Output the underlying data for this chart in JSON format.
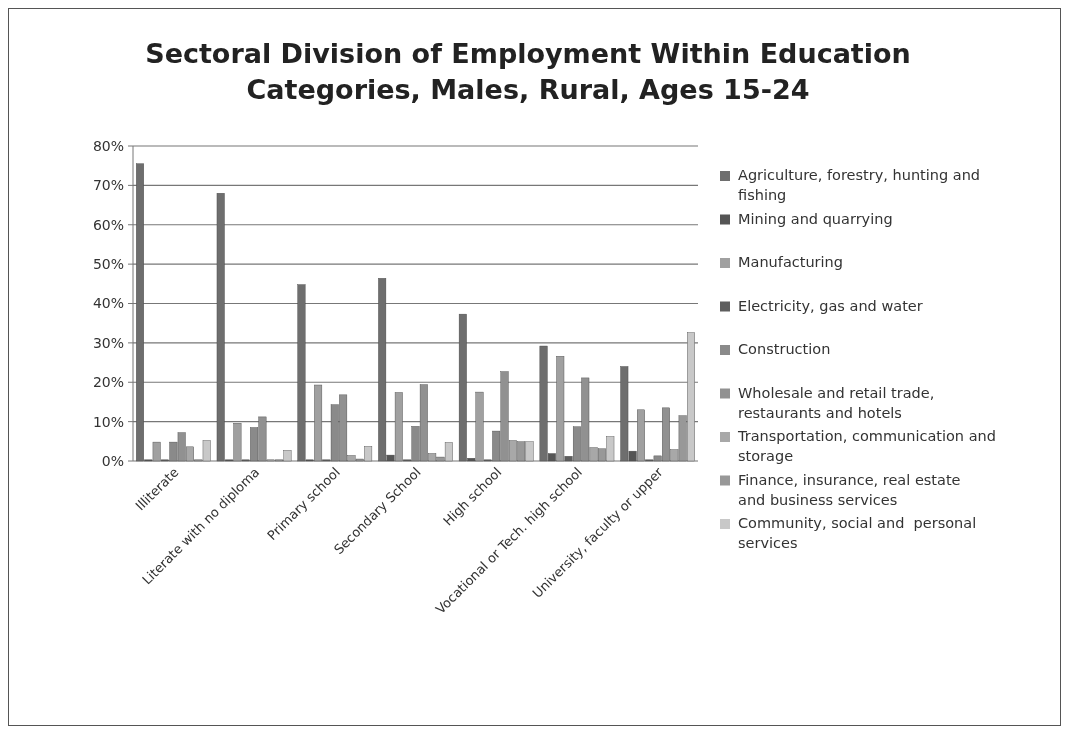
{
  "chart_data": {
    "type": "bar",
    "title": "Sectoral Division of Employment Within Education Categories, Males, Rural, Ages 15-24",
    "categories": [
      "Illiterate",
      "Literate with no diploma",
      "Primary school",
      "Secondary School",
      "High school",
      "Vocational or Tech. high school",
      "University, faculty or upper"
    ],
    "series": [
      {
        "name": " Agriculture, forestry, hunting and fishing",
        "color": "#6e6e6e",
        "values": [
          75.5,
          68,
          44.8,
          46.4,
          37.3,
          29.2,
          24
        ]
      },
      {
        "name": "Mining and quarrying",
        "color": "#555555",
        "values": [
          0.3,
          0.3,
          0.3,
          1.5,
          0.7,
          1.9,
          2.5
        ]
      },
      {
        "name": "Manufacturing",
        "color": "#a0a0a0",
        "values": [
          4.8,
          9.6,
          19.3,
          17.4,
          17.5,
          26.6,
          13
        ]
      },
      {
        "name": "Electricity, gas and water",
        "color": "#5e5e5e",
        "values": [
          0.3,
          0.3,
          0.3,
          0.3,
          0.3,
          1.2,
          0.3
        ]
      },
      {
        "name": "Construction",
        "color": "#8a8a8a",
        "values": [
          4.8,
          8.5,
          14.3,
          8.8,
          7.6,
          8.7,
          1.3
        ]
      },
      {
        "name": "Wholesale and retail trade, restaurants and hotels",
        "color": "#919191",
        "values": [
          7.2,
          11.2,
          16.8,
          19.4,
          22.7,
          21.1,
          13.5
        ]
      },
      {
        "name": "Transportation, communication and storage",
        "color": "#a8a8a8",
        "values": [
          3.6,
          0.3,
          1.4,
          1.9,
          5.2,
          3.4,
          2.9
        ]
      },
      {
        "name": "Finance, insurance, real estate and business services",
        "color": "#989898",
        "values": [
          0.3,
          0.3,
          0.5,
          1,
          4.9,
          3.1,
          11.5
        ]
      },
      {
        "name": "Community, social and  personal services",
        "color": "#c8c8c8",
        "values": [
          5.2,
          2.7,
          3.7,
          4.7,
          4.9,
          6.2,
          32.6
        ]
      }
    ],
    "ylim": [
      0,
      80
    ],
    "yticks": [
      {
        "value": 0,
        "label": "0%"
      },
      {
        "value": 10,
        "label": "10%"
      },
      {
        "value": 20,
        "label": "20%"
      },
      {
        "value": 30,
        "label": "30%"
      },
      {
        "value": 40,
        "label": "40%"
      },
      {
        "value": 50,
        "label": "50%"
      },
      {
        "value": 60,
        "label": "60%"
      },
      {
        "value": 70,
        "label": "70%"
      },
      {
        "value": 80,
        "label": "80%"
      }
    ],
    "grid": "y",
    "legend": "right"
  }
}
